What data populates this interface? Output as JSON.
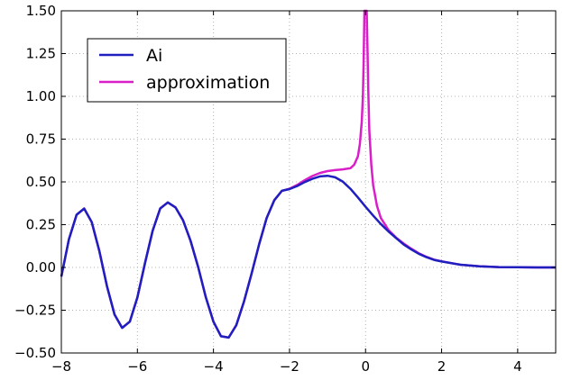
{
  "chart_data": {
    "type": "line",
    "xlim": [
      -8,
      5
    ],
    "ylim": [
      -0.5,
      1.5
    ],
    "x_ticks": [
      -8,
      -6,
      -4,
      -2,
      0,
      2,
      4
    ],
    "x_tick_labels": [
      "−8",
      "−6",
      "−4",
      "−2",
      "0",
      "2",
      "4"
    ],
    "y_ticks": [
      -0.5,
      -0.25,
      0.0,
      0.25,
      0.5,
      0.75,
      1.0,
      1.25,
      1.5
    ],
    "y_tick_labels": [
      "−0.50",
      "−0.25",
      "0.00",
      "0.25",
      "0.50",
      "0.75",
      "1.00",
      "1.25",
      "1.50"
    ],
    "grid": true,
    "grid_style": "dotted",
    "legend_position": "top-left",
    "series": [
      {
        "name": "Ai",
        "color": "#1f1fbf",
        "x": [
          -8,
          -7.8,
          -7.6,
          -7.4,
          -7.2,
          -7.0,
          -6.8,
          -6.6,
          -6.4,
          -6.2,
          -6.0,
          -5.8,
          -5.6,
          -5.4,
          -5.2,
          -5.0,
          -4.8,
          -4.6,
          -4.4,
          -4.2,
          -4.0,
          -3.8,
          -3.6,
          -3.4,
          -3.2,
          -3.0,
          -2.8,
          -2.6,
          -2.4,
          -2.2,
          -2.0,
          -1.8,
          -1.6,
          -1.4,
          -1.2,
          -1.0,
          -0.8,
          -0.6,
          -0.4,
          -0.2,
          0.0,
          0.2,
          0.4,
          0.6,
          0.8,
          1.0,
          1.2,
          1.4,
          1.6,
          1.8,
          2.0,
          2.5,
          3.0,
          3.5,
          4.0,
          4.5,
          5.0
        ],
        "y": [
          -0.053,
          0.164,
          0.308,
          0.344,
          0.265,
          0.094,
          -0.11,
          -0.276,
          -0.353,
          -0.317,
          -0.175,
          0.025,
          0.214,
          0.345,
          0.38,
          0.351,
          0.276,
          0.155,
          0.0,
          -0.175,
          -0.317,
          -0.402,
          -0.41,
          -0.338,
          -0.202,
          -0.038,
          0.134,
          0.289,
          0.393,
          0.448,
          0.458,
          0.476,
          0.499,
          0.518,
          0.532,
          0.536,
          0.527,
          0.502,
          0.46,
          0.409,
          0.355,
          0.303,
          0.254,
          0.211,
          0.172,
          0.135,
          0.106,
          0.08,
          0.06,
          0.044,
          0.035,
          0.016,
          0.007,
          0.002,
          0.001,
          0.0,
          0.0
        ]
      },
      {
        "name": "approximation",
        "color": "#d91fc8",
        "x": [
          -8,
          -7.8,
          -7.6,
          -7.4,
          -7.2,
          -7.0,
          -6.8,
          -6.6,
          -6.4,
          -6.2,
          -6.0,
          -5.8,
          -5.6,
          -5.4,
          -5.2,
          -5.0,
          -4.8,
          -4.6,
          -4.4,
          -4.2,
          -4.0,
          -3.8,
          -3.6,
          -3.4,
          -3.2,
          -3.0,
          -2.8,
          -2.6,
          -2.4,
          -2.2,
          -2.0,
          -1.8,
          -1.6,
          -1.4,
          -1.2,
          -1.0,
          -0.8,
          -0.6,
          -0.4,
          -0.3,
          -0.2,
          -0.15,
          -0.1,
          -0.07,
          -0.05,
          -0.03,
          -0.01,
          0.01,
          0.03,
          0.05,
          0.07,
          0.1,
          0.15,
          0.2,
          0.3,
          0.4,
          0.6,
          0.8,
          1.0,
          1.2,
          1.4,
          1.6,
          1.8,
          2.0,
          2.5,
          3.0,
          3.5,
          4.0,
          4.5,
          5.0
        ],
        "y": [
          -0.053,
          0.164,
          0.308,
          0.344,
          0.265,
          0.094,
          -0.11,
          -0.276,
          -0.353,
          -0.317,
          -0.175,
          0.025,
          0.214,
          0.345,
          0.38,
          0.351,
          0.276,
          0.155,
          0.0,
          -0.175,
          -0.317,
          -0.402,
          -0.41,
          -0.338,
          -0.202,
          -0.038,
          0.134,
          0.289,
          0.393,
          0.448,
          0.46,
          0.482,
          0.51,
          0.534,
          0.552,
          0.563,
          0.569,
          0.573,
          0.58,
          0.6,
          0.65,
          0.72,
          0.85,
          1.0,
          1.2,
          1.5,
          1.5,
          1.5,
          1.5,
          1.3,
          1.05,
          0.8,
          0.6,
          0.48,
          0.36,
          0.29,
          0.22,
          0.175,
          0.14,
          0.11,
          0.083,
          0.062,
          0.046,
          0.036,
          0.016,
          0.007,
          0.002,
          0.001,
          0.0,
          0.0
        ]
      }
    ]
  }
}
